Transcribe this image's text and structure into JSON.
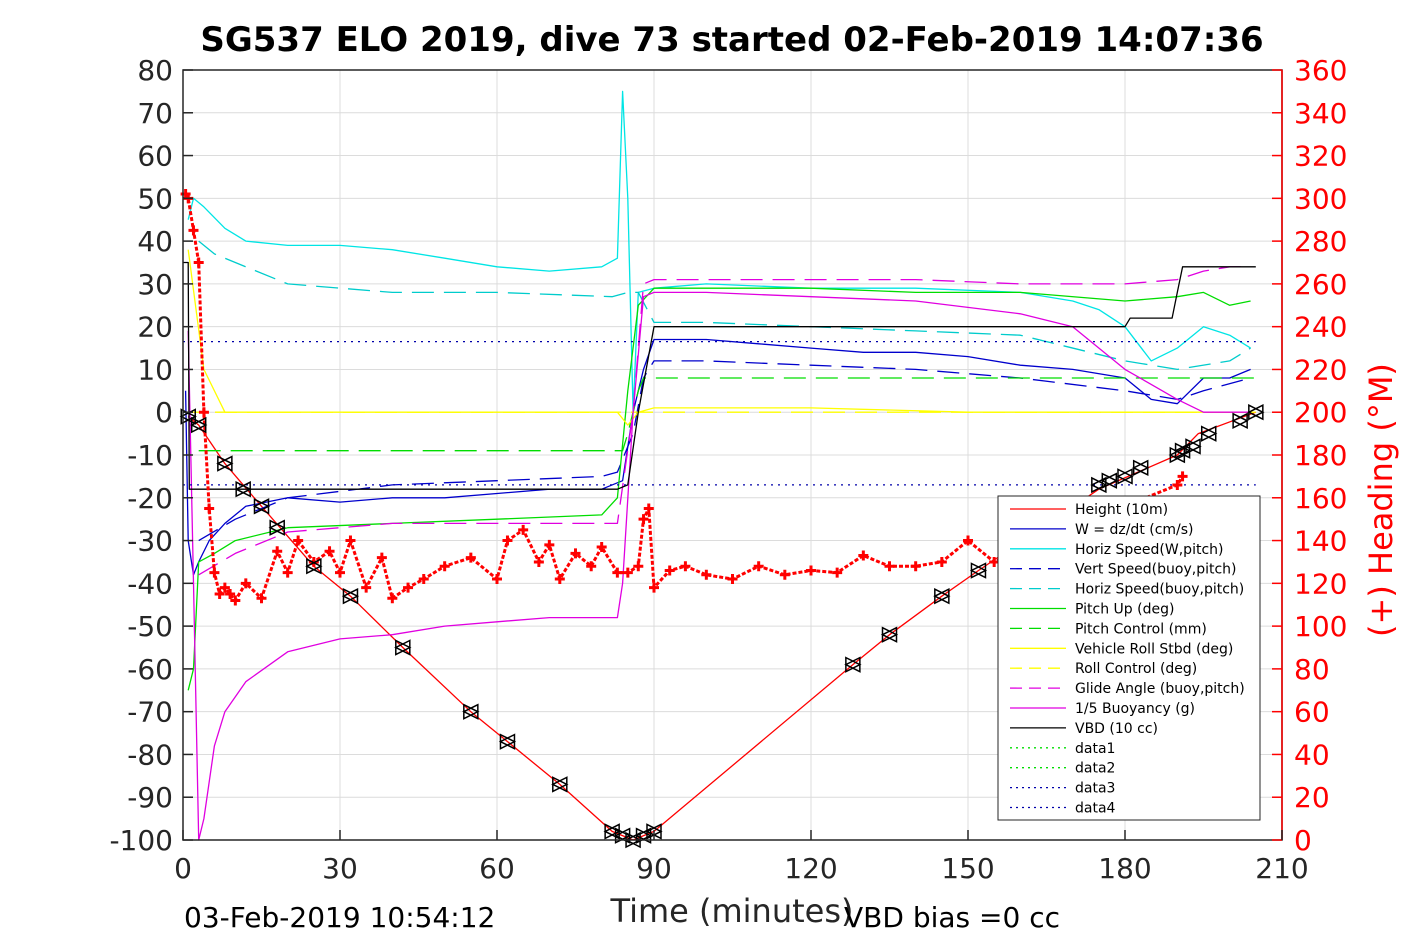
{
  "chart_data": {
    "type": "line",
    "title": "SG537 ELO 2019, dive 73 started 02-Feb-2019 14:07:36",
    "xlabel": "Time (minutes)",
    "ylabel_right": "(+) Heading (°M)",
    "footer_left": "03-Feb-2019 10:54:12",
    "footer_right": "VBD bias =0 cc",
    "xlim": [
      0,
      210
    ],
    "ylim": [
      -100,
      80
    ],
    "ylim_right": [
      0,
      360
    ],
    "x_ticks": [
      0,
      30,
      60,
      90,
      120,
      150,
      180,
      210
    ],
    "y_ticks": [
      80,
      70,
      60,
      50,
      40,
      30,
      20,
      10,
      0,
      -10,
      -20,
      -30,
      -40,
      -50,
      -60,
      -70,
      -80,
      -90,
      -100
    ],
    "y_ticks_right": [
      360,
      340,
      320,
      300,
      280,
      260,
      240,
      220,
      200,
      180,
      160,
      140,
      120,
      100,
      80,
      60,
      40,
      20,
      0
    ],
    "legend_position": "lower-right",
    "series": [
      {
        "name": "Height (10m)",
        "color": "#ff0000",
        "style": "solid",
        "x": [
          1,
          3,
          8,
          15,
          25,
          32,
          42,
          55,
          62,
          72,
          82,
          86,
          90,
          128,
          135,
          145,
          152,
          175,
          190,
          194,
          205
        ],
        "y": [
          -1,
          -3,
          -12,
          -22,
          -36,
          -43,
          -55,
          -70,
          -77,
          -87,
          -98,
          -100,
          -98,
          -59,
          -52,
          -43,
          -37,
          -18,
          -10,
          -5,
          0
        ]
      },
      {
        "name": "W = dz/dt (cm/s)",
        "color": "#0000cc",
        "style": "solid",
        "x": [
          0.5,
          1,
          2,
          3,
          5,
          8,
          12,
          20,
          30,
          40,
          50,
          60,
          70,
          80,
          84,
          86,
          88,
          90,
          100,
          110,
          120,
          130,
          140,
          150,
          160,
          170,
          180,
          185,
          190,
          195,
          200,
          204
        ],
        "y": [
          5,
          -30,
          -38,
          -35,
          -30,
          -26,
          -22,
          -20,
          -21,
          -20,
          -20,
          -19,
          -18,
          -18,
          -16,
          0,
          10,
          17,
          17,
          16,
          15,
          14,
          14,
          13,
          11,
          10,
          8,
          3,
          2,
          8,
          8,
          10
        ]
      },
      {
        "name": "Horiz Speed(W,pitch)",
        "color": "#00e5e5",
        "style": "solid",
        "x": [
          1,
          2,
          4,
          8,
          12,
          20,
          30,
          40,
          50,
          60,
          70,
          80,
          83,
          84,
          85,
          86,
          87,
          90,
          100,
          120,
          140,
          160,
          170,
          175,
          180,
          185,
          190,
          195,
          200,
          204
        ],
        "y": [
          45,
          50,
          48,
          43,
          40,
          39,
          39,
          38,
          36,
          34,
          33,
          34,
          36,
          75,
          50,
          0,
          28,
          29,
          30,
          29,
          29,
          28,
          26,
          24,
          20,
          12,
          15,
          20,
          18,
          15
        ]
      },
      {
        "name": "Vert Speed(buoy,pitch)",
        "color": "#0000cc",
        "style": "dashed",
        "x": [
          3,
          10,
          20,
          40,
          60,
          80,
          83,
          86,
          88,
          90,
          100,
          120,
          140,
          160,
          180,
          190,
          195,
          204
        ],
        "y": [
          -30,
          -25,
          -20,
          -17,
          -16,
          -15,
          -14,
          -5,
          8,
          12,
          12,
          11,
          10,
          8,
          5,
          3,
          5,
          8
        ]
      },
      {
        "name": "Horiz Speed(buoy,pitch)",
        "color": "#00cccc",
        "style": "dashed",
        "x": [
          3,
          6,
          10,
          20,
          40,
          60,
          82,
          85,
          87,
          90,
          100,
          120,
          140,
          160,
          180,
          190,
          200,
          204
        ],
        "y": [
          40,
          37,
          35,
          30,
          28,
          28,
          27,
          28,
          28,
          21,
          21,
          20,
          19,
          18,
          12,
          10,
          12,
          15
        ]
      },
      {
        "name": "Pitch Up (deg)",
        "color": "#00dd00",
        "style": "solid",
        "x": [
          1,
          2,
          3,
          6,
          10,
          20,
          40,
          60,
          80,
          83,
          85,
          87,
          90,
          100,
          120,
          140,
          160,
          180,
          190,
          195,
          200,
          204
        ],
        "y": [
          -65,
          -60,
          -35,
          -33,
          -30,
          -27,
          -26,
          -25,
          -24,
          -20,
          5,
          25,
          29,
          29,
          29,
          28,
          28,
          26,
          27,
          28,
          25,
          26
        ]
      },
      {
        "name": "Pitch Control (mm)",
        "color": "#00dd00",
        "style": "dashed",
        "x": [
          3,
          6,
          84,
          85,
          87,
          88,
          90,
          185,
          205
        ],
        "y": [
          -9,
          -9,
          -9,
          -5,
          5,
          8,
          8,
          8,
          8
        ]
      },
      {
        "name": "Vehicle Roll Stbd (deg)",
        "color": "#ffff00",
        "style": "solid",
        "x": [
          1,
          4,
          8,
          30,
          60,
          83,
          85,
          87,
          90,
          120,
          150,
          170,
          175,
          180,
          190,
          195,
          204
        ],
        "y": [
          38,
          10,
          0,
          0,
          0,
          0,
          -3,
          0,
          1,
          1,
          0,
          0,
          0,
          0,
          0,
          0,
          0
        ]
      },
      {
        "name": "Roll Control (deg)",
        "color": "#ffff00",
        "style": "dashed",
        "x": [
          0,
          205
        ],
        "y": [
          0,
          0
        ]
      },
      {
        "name": "Glide Angle (buoy,pitch)",
        "color": "#e000e0",
        "style": "dashed",
        "x": [
          3,
          10,
          20,
          40,
          60,
          80,
          83,
          86,
          88,
          90,
          100,
          120,
          140,
          160,
          180,
          190,
          195,
          200,
          204
        ],
        "y": [
          -38,
          -33,
          -28,
          -26,
          -26,
          -26,
          -26,
          0,
          30,
          31,
          31,
          31,
          31,
          30,
          30,
          31,
          33,
          34,
          34
        ]
      },
      {
        "name": "1/5 Buoyancy (g)",
        "color": "#e000e0",
        "style": "solid",
        "x": [
          1,
          2,
          3,
          4,
          6,
          8,
          12,
          20,
          30,
          40,
          50,
          60,
          70,
          83,
          84,
          86,
          88,
          90,
          100,
          120,
          140,
          160,
          170,
          180,
          190,
          195,
          200,
          204
        ],
        "y": [
          19,
          -40,
          -100,
          -95,
          -78,
          -70,
          -63,
          -56,
          -53,
          -52,
          -50,
          -49,
          -48,
          -48,
          -40,
          0,
          27,
          28,
          28,
          27,
          26,
          23,
          20,
          10,
          3,
          0,
          0,
          0
        ]
      },
      {
        "name": "VBD (10 cc)",
        "color": "#000000",
        "style": "solid",
        "x": [
          0,
          0.5,
          1,
          1.2,
          3,
          83,
          85,
          87,
          90,
          180,
          181,
          189,
          190,
          191,
          205
        ],
        "y": [
          35,
          35,
          35,
          -18,
          -18,
          -18,
          -17,
          0,
          20,
          20,
          22,
          22,
          28,
          34,
          34
        ]
      },
      {
        "name": "data1",
        "color": "#00dd00",
        "style": "dotted",
        "x": [],
        "y": []
      },
      {
        "name": "data2",
        "color": "#00dd00",
        "style": "dotted",
        "x": [],
        "y": []
      },
      {
        "name": "data3",
        "color": "#0000aa",
        "style": "dotted",
        "x": [
          0,
          205
        ],
        "y": [
          16.5,
          16.5
        ]
      },
      {
        "name": "data4",
        "color": "#0000aa",
        "style": "dotted",
        "x": [
          0,
          205
        ],
        "y": [
          -17,
          -17
        ]
      }
    ],
    "heading": {
      "color": "#ff0000",
      "marker": "+",
      "axis": "right",
      "x": [
        0.5,
        1,
        2,
        3,
        4,
        5,
        6,
        7,
        8,
        9,
        10,
        12,
        15,
        18,
        20,
        22,
        25,
        28,
        30,
        32,
        35,
        38,
        40,
        43,
        46,
        50,
        55,
        60,
        62,
        65,
        68,
        70,
        72,
        75,
        78,
        80,
        83,
        85,
        87,
        88,
        89,
        90,
        93,
        96,
        100,
        105,
        110,
        115,
        120,
        125,
        130,
        135,
        140,
        145,
        150,
        155,
        160,
        190,
        191
      ],
      "y": [
        302,
        300,
        285,
        270,
        200,
        155,
        125,
        115,
        118,
        115,
        112,
        120,
        113,
        135,
        125,
        140,
        130,
        135,
        125,
        140,
        118,
        132,
        113,
        118,
        122,
        128,
        132,
        122,
        140,
        145,
        130,
        138,
        122,
        134,
        128,
        137,
        125,
        125,
        128,
        150,
        155,
        118,
        126,
        128,
        124,
        122,
        128,
        124,
        126,
        125,
        133,
        128,
        128,
        130,
        140,
        130,
        136,
        166,
        170
      ]
    },
    "height_markers_x": [
      1,
      3,
      8,
      11.5,
      15,
      18,
      25,
      32,
      42,
      55,
      62,
      72,
      82,
      84,
      86,
      88,
      90,
      128,
      135,
      145,
      152,
      175,
      177,
      180,
      183,
      190,
      191,
      193,
      196,
      202,
      205
    ],
    "height_markers_y": [
      -1,
      -3,
      -12,
      -18,
      -22,
      -27,
      -36,
      -43,
      -55,
      -70,
      -77,
      -87,
      -98,
      -99,
      -100,
      -99,
      -98,
      -59,
      -52,
      -43,
      -37,
      -17,
      -16,
      -15,
      -13,
      -10,
      -9,
      -8,
      -5,
      -2,
      0
    ]
  }
}
